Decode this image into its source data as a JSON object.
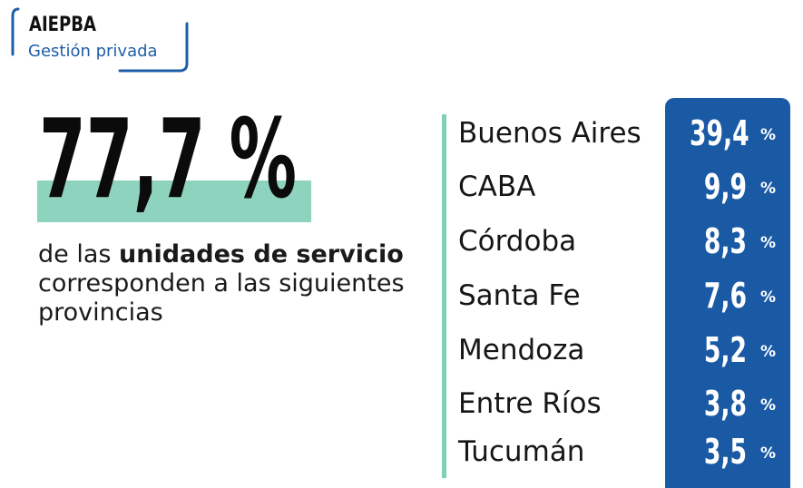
{
  "logo": {
    "title": "AIEPBA",
    "subtitle": "Gestión privada",
    "accent_color": "#1f5fa8"
  },
  "stat": {
    "value": "77,7 %",
    "highlight_color": "#8ed3bd",
    "desc_part1": "de las ",
    "desc_bold": "unidades de servicio",
    "desc_part2": " corresponden a las siguientes provincias"
  },
  "provinces": [
    {
      "name": "Buenos Aires",
      "value": "39,4",
      "unit": "%"
    },
    {
      "name": "CABA",
      "value": "9,9",
      "unit": "%"
    },
    {
      "name": "Córdoba",
      "value": "8,3",
      "unit": "%"
    },
    {
      "name": "Santa Fe",
      "value": "7,6",
      "unit": "%"
    },
    {
      "name": "Mendoza",
      "value": "5,2",
      "unit": "%"
    },
    {
      "name": "Entre Ríos",
      "value": "3,8",
      "unit": "%"
    },
    {
      "name": "Tucumán",
      "value": "3,5",
      "unit": "%"
    }
  ],
  "colors": {
    "panel": "#1a5aa5",
    "divider": "#7fd0b6"
  }
}
